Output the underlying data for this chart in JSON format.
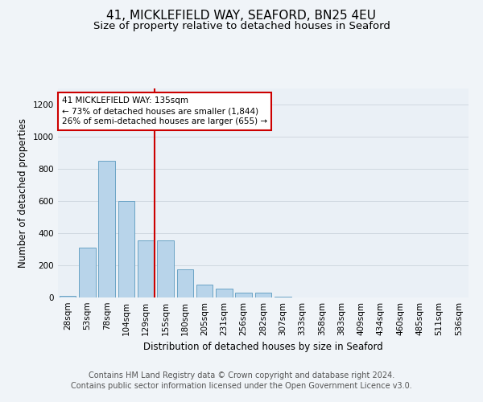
{
  "title_line1": "41, MICKLEFIELD WAY, SEAFORD, BN25 4EU",
  "title_line2": "Size of property relative to detached houses in Seaford",
  "xlabel": "Distribution of detached houses by size in Seaford",
  "ylabel": "Number of detached properties",
  "categories": [
    "28sqm",
    "53sqm",
    "78sqm",
    "104sqm",
    "129sqm",
    "155sqm",
    "180sqm",
    "205sqm",
    "231sqm",
    "256sqm",
    "282sqm",
    "307sqm",
    "333sqm",
    "358sqm",
    "383sqm",
    "409sqm",
    "434sqm",
    "460sqm",
    "485sqm",
    "511sqm",
    "536sqm"
  ],
  "values": [
    10,
    310,
    850,
    600,
    355,
    355,
    175,
    80,
    55,
    30,
    30,
    5,
    0,
    0,
    0,
    0,
    0,
    0,
    0,
    0,
    0
  ],
  "bar_color": "#b8d4ea",
  "bar_edge_color": "#5a9abf",
  "highlight_bar_idx": 4,
  "highlight_color": "#cc0000",
  "annotation_text": "41 MICKLEFIELD WAY: 135sqm\n← 73% of detached houses are smaller (1,844)\n26% of semi-detached houses are larger (655) →",
  "annotation_box_color": "#ffffff",
  "annotation_box_edge": "#cc0000",
  "ylim": [
    0,
    1300
  ],
  "yticks": [
    0,
    200,
    400,
    600,
    800,
    1000,
    1200
  ],
  "grid_color": "#d0d8e0",
  "bg_color": "#f0f4f8",
  "plot_bg_color": "#eaf0f6",
  "footer_line1": "Contains HM Land Registry data © Crown copyright and database right 2024.",
  "footer_line2": "Contains public sector information licensed under the Open Government Licence v3.0.",
  "title_fontsize": 11,
  "subtitle_fontsize": 9.5,
  "axis_label_fontsize": 8.5,
  "tick_fontsize": 7.5,
  "footer_fontsize": 7
}
